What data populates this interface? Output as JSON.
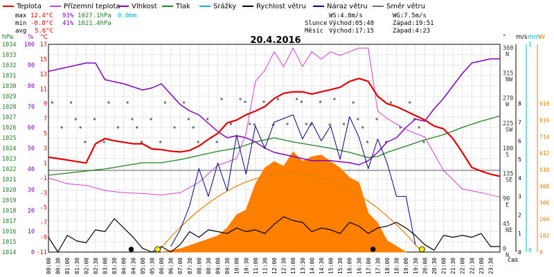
{
  "chart_data": {
    "type": "line",
    "title": "20.4.2016",
    "xlabel": "čas",
    "legend": [
      {
        "label": "Teplota",
        "color": "#e00000"
      },
      {
        "label": "Přízemní teplota",
        "color": "#d040d0"
      },
      {
        "label": "Vlhkost",
        "color": "#8000c0"
      },
      {
        "label": "Tlak",
        "color": "#208020"
      },
      {
        "label": "Srážky",
        "color": "#00b0d0"
      },
      {
        "label": "Rychlost větru",
        "color": "#000000"
      },
      {
        "label": "Náraz větru",
        "color": "#000080"
      },
      {
        "label": "Směr větru",
        "color": "#707070"
      }
    ],
    "stats": {
      "max": {
        "label": "max",
        "temp": "12.4°C",
        "hum": "93%",
        "press": "1027.1hPa",
        "rain": "0.0mm"
      },
      "min": {
        "label": "min",
        "temp": "-0.8°C",
        "hum": "41%",
        "press": "1021.4hPa"
      },
      "avg": {
        "label": "avg",
        "temp": "5.6°C"
      }
    },
    "info": {
      "wind": "WS:4.8m/s",
      "gust": "WG:7.5m/s",
      "sun_label": "Slunce",
      "sun_rise": "Východ:05:48",
      "sun_set": "Západ:19:51",
      "moon_label": "Měsíc",
      "moon_rise": "Východ:17:15",
      "moon_set": "Západ:4:23"
    },
    "axis_units": {
      "hpa": "hPa",
      "pct": "%",
      "degc": "°C",
      "deg": "°",
      "ms": "m/s",
      "mm": "mm",
      "w": "W"
    },
    "axes": {
      "pressure_ticks": [
        "1034",
        "1033",
        "1032",
        "1031",
        "1030",
        "1029",
        "1028",
        "1027",
        "1026",
        "1025",
        "1024",
        "1023",
        "1022",
        "1021",
        "1020",
        "1019",
        "1018",
        "1017",
        "1016",
        "1015",
        "1014"
      ],
      "humidity_ticks": [
        "100",
        "90",
        "80",
        "70",
        "60",
        "50",
        "40",
        "30",
        "20",
        "10",
        "0"
      ],
      "temp_ticks": [
        "17",
        "15",
        "13",
        "11",
        "9",
        "7",
        "5",
        "3",
        "1",
        "-1",
        "-3",
        "-5",
        "-7",
        "-9",
        "-11"
      ],
      "dir_ticks": [
        "360",
        "315",
        "270",
        "225",
        "180",
        "135",
        "90",
        "45",
        "0"
      ],
      "dir_names": [
        "N",
        "NW",
        "W",
        "SW",
        "S",
        "SE",
        "E",
        "NE",
        "N"
      ],
      "ms_ticks": [
        "8",
        "7",
        "6",
        "5",
        "4",
        "3",
        "2",
        "1",
        "0"
      ],
      "rain_ticks": [
        "1",
        "0"
      ],
      "w_ticks": [
        "918",
        "816",
        "714",
        "612",
        "510",
        "408",
        "306",
        "204",
        "102",
        "0"
      ],
      "time_ticks": [
        "00:00",
        "00:30",
        "01:00",
        "01:30",
        "02:00",
        "02:30",
        "03:00",
        "03:30",
        "04:00",
        "04:30",
        "05:00",
        "05:30",
        "06:00",
        "06:30",
        "07:00",
        "07:30",
        "08:00",
        "08:30",
        "09:00",
        "09:30",
        "10:00",
        "10:30",
        "11:00",
        "11:30",
        "12:00",
        "12:30",
        "13:00",
        "13:30",
        "14:00",
        "14:30",
        "15:00",
        "15:30",
        "16:00",
        "16:30",
        "17:00",
        "17:30",
        "18:00",
        "18:30",
        "19:00",
        "19:30",
        "20:00",
        "20:30",
        "21:00",
        "21:30",
        "22:00",
        "22:30",
        "23:00",
        "23:30"
      ]
    },
    "series": {
      "temperature": {
        "name": "Teplota",
        "x": [
          0,
          0.5,
          1,
          1.5,
          2,
          2.5,
          3,
          3.5,
          4,
          4.5,
          5,
          5.5,
          6,
          6.5,
          7,
          7.5,
          8,
          8.5,
          9,
          9.5,
          10,
          10.5,
          11,
          11.5,
          12,
          12.5,
          13,
          13.5,
          14,
          14.5,
          15,
          15.5,
          16,
          16.5,
          17,
          17.5,
          18,
          18.5,
          19,
          19.5,
          20,
          20.5,
          21,
          21.5,
          22,
          22.5,
          23,
          23.5,
          24
        ],
        "values": [
          1.8,
          1.6,
          1.4,
          1.2,
          1.0,
          3.6,
          4.3,
          4.0,
          3.8,
          3.6,
          3.6,
          2.9,
          2.8,
          2.6,
          2.5,
          2.7,
          3.3,
          4.2,
          5.0,
          6.4,
          6.8,
          7.5,
          8.0,
          8.6,
          9.7,
          10.4,
          10.6,
          10.6,
          10.3,
          10.6,
          10.9,
          11.2,
          12.0,
          12.4,
          12.0,
          10.0,
          9.0,
          8.6,
          8.0,
          7.4,
          6.8,
          6.0,
          5.6,
          4.3,
          2.4,
          0.4,
          -0.1,
          -0.5,
          -0.8
        ]
      },
      "ground_temperature": {
        "name": "Přízemní teplota",
        "x": [
          0,
          1,
          2,
          3,
          4,
          5,
          6,
          7,
          8,
          9,
          10,
          10.5,
          11,
          11.5,
          12,
          12.5,
          13,
          13.5,
          14,
          14.5,
          15,
          15.5,
          16,
          16.5,
          17,
          17.5,
          18,
          19,
          20,
          21,
          22,
          23,
          24
        ],
        "values": [
          -1.0,
          -1.8,
          -2.0,
          -2.7,
          -3.0,
          -3.1,
          -3.3,
          -3.0,
          -1.6,
          0.7,
          1.6,
          5.0,
          12.0,
          13.5,
          16.0,
          14.0,
          16.5,
          14.0,
          16.0,
          15.0,
          16.0,
          15.5,
          16.0,
          16.5,
          16.5,
          8.0,
          7.0,
          5.5,
          4.5,
          0.0,
          -2.5,
          -3.0,
          -3.6
        ]
      },
      "humidity": {
        "name": "Vlhkost",
        "x": [
          0,
          0.5,
          1,
          1.5,
          2,
          2.5,
          3,
          4,
          5,
          5.5,
          6,
          6.5,
          7,
          7.5,
          8,
          8.5,
          9,
          9.5,
          10,
          10.5,
          11,
          11.5,
          12,
          13,
          14,
          15,
          16,
          16.5,
          17,
          17.5,
          18,
          18.5,
          19,
          19.5,
          20,
          20.5,
          21,
          21.5,
          22,
          22.5,
          23,
          23.5,
          24
        ],
        "values": [
          87,
          88,
          89,
          90,
          91,
          91,
          83,
          81,
          78,
          79,
          81,
          76,
          71,
          68,
          66,
          62,
          58,
          55,
          56,
          55,
          53,
          50,
          48,
          46,
          44,
          44,
          43,
          42,
          44,
          48,
          53,
          55,
          60,
          64,
          63,
          69,
          74,
          80,
          86,
          91,
          92,
          93,
          93
        ]
      },
      "pressure": {
        "name": "Tlak",
        "x": [
          0,
          1,
          2,
          3,
          4,
          5,
          6,
          7,
          8,
          9,
          10,
          10.5,
          11,
          12,
          13,
          14,
          15,
          16,
          17,
          17.5,
          18,
          19,
          20,
          21,
          22,
          23,
          24
        ],
        "values": [
          1021.4,
          1021.6,
          1021.8,
          1022.0,
          1022.3,
          1022.6,
          1022.6,
          1022.9,
          1023.3,
          1023.7,
          1024.0,
          1024.3,
          1024.6,
          1025.0,
          1024.6,
          1024.3,
          1024.0,
          1023.6,
          1023.1,
          1023.2,
          1023.6,
          1024.2,
          1024.8,
          1025.3,
          1026.0,
          1026.6,
          1027.1
        ]
      },
      "wind_speed": {
        "name": "Rychlost větru",
        "x": [
          0,
          0.5,
          1,
          1.5,
          2,
          2.5,
          3,
          3.5,
          4,
          4.5,
          5,
          5.5,
          6,
          6.5,
          7,
          7.5,
          8,
          8.5,
          9,
          9.5,
          10,
          10.5,
          11,
          11.5,
          12,
          12.5,
          13,
          13.5,
          14,
          14.5,
          15,
          15.5,
          16,
          16.5,
          17,
          17.5,
          18,
          18.5,
          19,
          19.5,
          20,
          20.5,
          21,
          21.5,
          22,
          22.5,
          23,
          23.5,
          24
        ],
        "values": [
          0.8,
          0.0,
          0.9,
          0.6,
          0.5,
          1.2,
          1.1,
          1.8,
          1.3,
          0.8,
          0.2,
          0.0,
          0.3,
          0.0,
          0.4,
          1.1,
          0.8,
          1.2,
          1.1,
          1.0,
          1.3,
          1.1,
          1.2,
          1.0,
          1.5,
          1.9,
          1.7,
          1.6,
          1.1,
          1.3,
          1.2,
          1.0,
          1.6,
          1.4,
          1.0,
          1.3,
          1.4,
          1.6,
          1.3,
          0.9,
          0.4,
          0.1,
          0.9,
          0.8,
          0.9,
          0.8,
          1.0,
          0.3,
          0.3
        ]
      },
      "wind_gust": {
        "name": "Náraz větru",
        "x": [
          6.5,
          7,
          7.5,
          8,
          8.5,
          9,
          9.5,
          10,
          10.5,
          11,
          11.5,
          12,
          12.5,
          13,
          13.5,
          14,
          14.5,
          15,
          15.5,
          16,
          16.5,
          17,
          17.5,
          18,
          18.5,
          19,
          19.5
        ],
        "values": [
          0.3,
          1.2,
          2.5,
          4.5,
          3.0,
          4.8,
          3.3,
          6.3,
          4.2,
          6.8,
          5.6,
          7.0,
          7.2,
          7.4,
          6.1,
          7.0,
          6.0,
          6.8,
          5.0,
          7.3,
          6.2,
          4.5,
          6.1,
          4.8,
          3.0,
          3.0,
          0.4
        ]
      },
      "solar_radiation": {
        "name": "",
        "x": [
          6,
          7,
          8,
          9,
          9.5,
          10,
          10.5,
          11,
          11.5,
          12,
          12.5,
          13,
          13.5,
          14,
          14.5,
          15,
          15.5,
          16,
          16.5,
          17,
          17.5,
          18,
          19
        ],
        "values": [
          0,
          20,
          60,
          100,
          150,
          230,
          260,
          420,
          520,
          560,
          530,
          620,
          560,
          590,
          600,
          560,
          520,
          460,
          430,
          240,
          180,
          70,
          0
        ]
      }
    },
    "markers": [
      {
        "type": "moon",
        "time": 4.4
      },
      {
        "type": "sun",
        "time": 5.8
      },
      {
        "type": "moon",
        "time": 17.25
      },
      {
        "type": "sun",
        "time": 19.85
      }
    ]
  }
}
